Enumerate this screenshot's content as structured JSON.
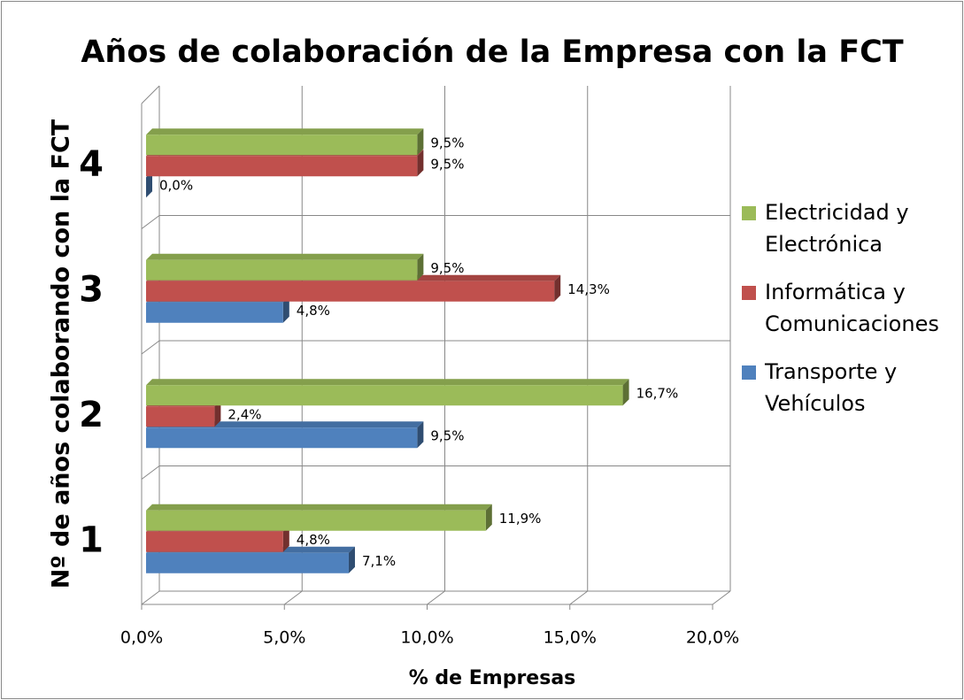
{
  "chart_data": {
    "type": "bar3d_horizontal",
    "title": "Años de colaboración de la Empresa con la FCT",
    "x_label": "% de Empresas",
    "y_label": "Nº de años colaborando con la FCT",
    "categories": [
      "1",
      "2",
      "3",
      "4"
    ],
    "series": [
      {
        "name": "Transporte y Vehículos",
        "color": "#4f81bd",
        "values": [
          7.1,
          9.5,
          4.8,
          0.0
        ],
        "value_labels": [
          "7,1%",
          "9,5%",
          "4,8%",
          "0,0%"
        ]
      },
      {
        "name": "Informática y Comunicaciones",
        "color": "#c0504d",
        "values": [
          4.8,
          2.4,
          14.3,
          9.5
        ],
        "value_labels": [
          "4,8%",
          "2,4%",
          "14,3%",
          "9,5%"
        ]
      },
      {
        "name": "Electricidad y Electrónica",
        "color": "#9bbb59",
        "values": [
          11.9,
          16.7,
          9.5,
          9.5
        ],
        "value_labels": [
          "11,9%",
          "16,7%",
          "9,5%",
          "9,5%"
        ]
      }
    ],
    "xlim": [
      0,
      20
    ],
    "xticks": [
      {
        "value": 0,
        "label": "0,0%"
      },
      {
        "value": 5,
        "label": "5,0%"
      },
      {
        "value": 10,
        "label": "10,0%"
      },
      {
        "value": 15,
        "label": "15,0%"
      },
      {
        "value": 20,
        "label": "20,0%"
      }
    ],
    "grid": true
  }
}
